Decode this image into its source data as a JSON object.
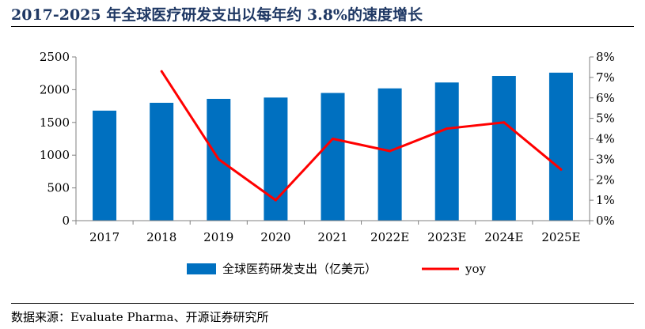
{
  "title": "2017-2025 年全球医疗研发支出以每年约 3.8%的速度增长",
  "source": "数据来源：Evaluate Pharma、开源证券研究所",
  "chart_data": {
    "type": "bar",
    "categories": [
      "2017",
      "2018",
      "2019",
      "2020",
      "2021",
      "2022E",
      "2023E",
      "2024E",
      "2025E"
    ],
    "series": [
      {
        "name": "全球医药研发支出（亿美元）",
        "type": "bar",
        "axis": "left",
        "color": "#0070c0",
        "values": [
          1680,
          1800,
          1860,
          1880,
          1950,
          2020,
          2110,
          2210,
          2260
        ]
      },
      {
        "name": "yoy",
        "type": "line",
        "axis": "right",
        "color": "#ff0000",
        "values": [
          null,
          7.3,
          3.0,
          1.0,
          4.0,
          3.4,
          4.5,
          4.8,
          2.5
        ]
      }
    ],
    "ylim": [
      0,
      2500
    ],
    "y_ticks": [
      "0",
      "500",
      "1000",
      "1500",
      "2000",
      "2500"
    ],
    "y2lim": [
      0,
      8
    ],
    "y2_ticks": [
      "0%",
      "1%",
      "2%",
      "3%",
      "4%",
      "5%",
      "6%",
      "7%",
      "8%"
    ],
    "grid": false,
    "legend_position": "bottom"
  }
}
